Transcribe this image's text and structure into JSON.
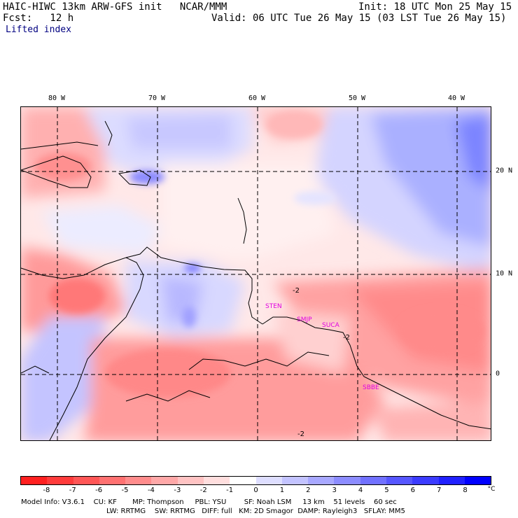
{
  "header": {
    "title": "HAIC-HIWC 13km ARW-GFS init   NCAR/MMM",
    "init": "Init: 18 UTC Mon 25 May 15",
    "fcst": "Fcst:   12 h",
    "valid": "Valid: 06 UTC Tue 26 May 15 (03 LST Tue 26 May 15)",
    "field": "Lifted index"
  },
  "map": {
    "lon_labels": [
      "80 W",
      "70 W",
      "60 W",
      "50 W",
      "40 W"
    ],
    "lat_labels": [
      "20 N",
      "10 N",
      "0"
    ],
    "stations": [
      "STEN",
      "SMJP",
      "SUCA",
      "SBBE"
    ],
    "contour_labels": [
      "-2",
      "-2",
      "-2"
    ]
  },
  "colorbar": {
    "ticks": [
      "-8",
      "-7",
      "-6",
      "-5",
      "-4",
      "-3",
      "-2",
      "-1",
      "0",
      "1",
      "2",
      "3",
      "4",
      "5",
      "6",
      "7",
      "8"
    ],
    "unit": "°C",
    "colors": [
      "#ff2020",
      "#ff3b3b",
      "#ff5656",
      "#ff7171",
      "#ff8c8c",
      "#ffa8a8",
      "#ffc3c3",
      "#ffdede",
      "#ffffff",
      "#dedeff",
      "#c3c3ff",
      "#a8a8ff",
      "#8c8cff",
      "#7171ff",
      "#5656ff",
      "#3b3bff",
      "#2020ff",
      "#0000ff"
    ]
  },
  "footer": {
    "line1": "Model Info: V3.6.1    CU: KF       MP: Thompson     PBL: YSU        SF: Noah LSM     13 km    51 levels    60 sec",
    "line2": "LW: RRTMG    SW: RRTMG   DIFF: full   KM: 2D Smagor  DAMP: Rayleigh3   SFLAY: MM5"
  }
}
